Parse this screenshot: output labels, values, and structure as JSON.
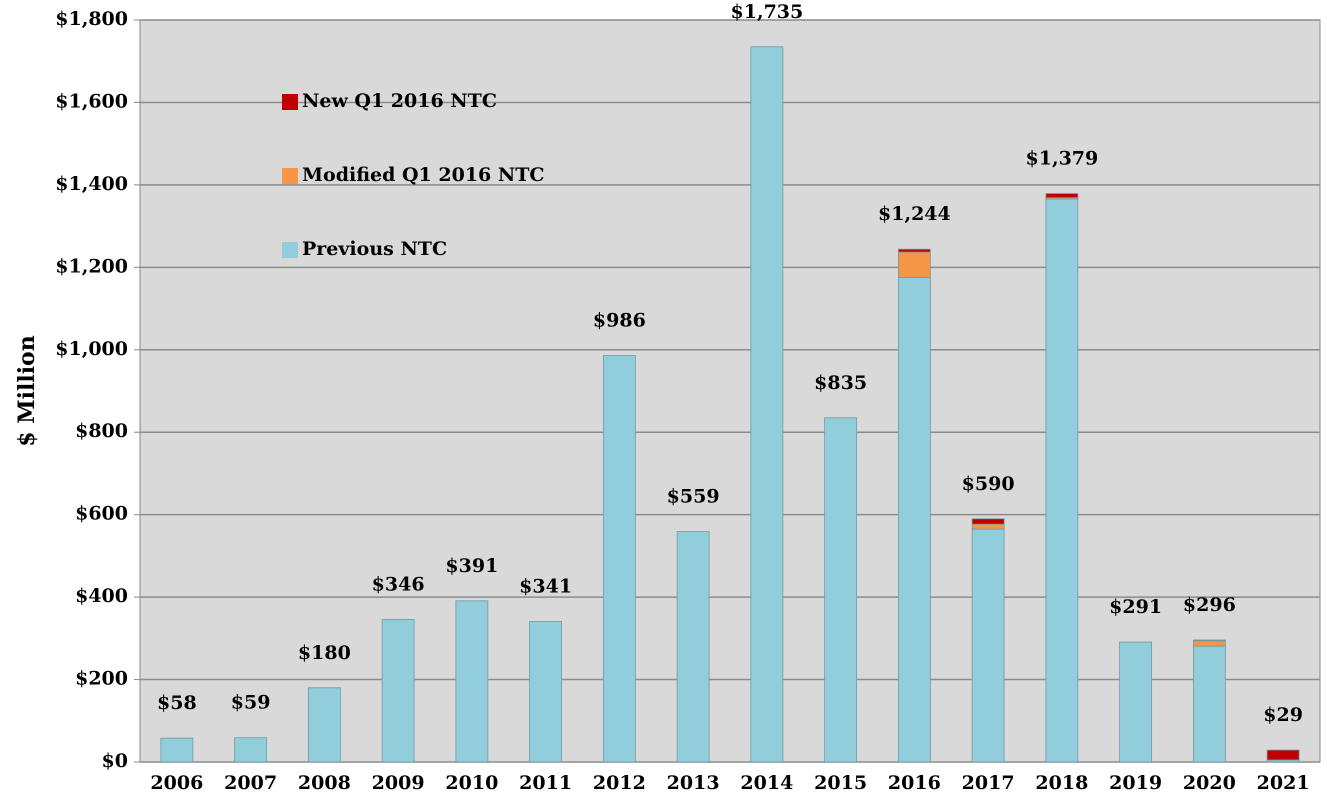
{
  "chart_data": {
    "type": "stacked_bar",
    "y_label": "$ Million",
    "categories": [
      "2006",
      "2007",
      "2008",
      "2009",
      "2010",
      "2011",
      "2012",
      "2013",
      "2014",
      "2015",
      "2016",
      "2017",
      "2018",
      "2019",
      "2020",
      "2021"
    ],
    "series": [
      {
        "name": "Previous NTC",
        "color": "#92cddc",
        "values": [
          58,
          59,
          180,
          346,
          391,
          341,
          986,
          559,
          1735,
          835,
          1175,
          565,
          1366,
          291,
          281,
          5
        ]
      },
      {
        "name": "Modified Q1 2016 NTC",
        "color": "#f79646",
        "values": [
          0,
          0,
          0,
          0,
          0,
          0,
          0,
          0,
          0,
          0,
          62,
          12,
          3,
          0,
          13,
          0
        ]
      },
      {
        "name": "New Q1 2016 NTC",
        "color": "#c00000",
        "values": [
          0,
          0,
          0,
          0,
          0,
          0,
          0,
          0,
          0,
          0,
          7,
          13,
          10,
          0,
          2,
          24
        ]
      }
    ],
    "totals": [
      58,
      59,
      180,
      346,
      391,
      341,
      986,
      559,
      1735,
      835,
      1244,
      590,
      1379,
      291,
      296,
      29
    ],
    "total_labels": [
      "$58",
      "$59",
      "$180",
      "$346",
      "$391",
      "$341",
      "$986",
      "$559",
      "$1,735",
      "$835",
      "$1,244",
      "$590",
      "$1,379",
      "$291",
      "$296",
      "$29"
    ],
    "ylim": [
      0,
      1800
    ],
    "yticks": [
      {
        "value": 0,
        "label": "$0"
      },
      {
        "value": 200,
        "label": "$200"
      },
      {
        "value": 400,
        "label": "$400"
      },
      {
        "value": 600,
        "label": "$600"
      },
      {
        "value": 800,
        "label": "$800"
      },
      {
        "value": 1000,
        "label": "$1,000"
      },
      {
        "value": 1200,
        "label": "$1,200"
      },
      {
        "value": 1400,
        "label": "$1,400"
      },
      {
        "value": 1600,
        "label": "$1,600"
      },
      {
        "value": 1800,
        "label": "$1,800"
      }
    ],
    "grid": true,
    "legend": "upper left"
  }
}
